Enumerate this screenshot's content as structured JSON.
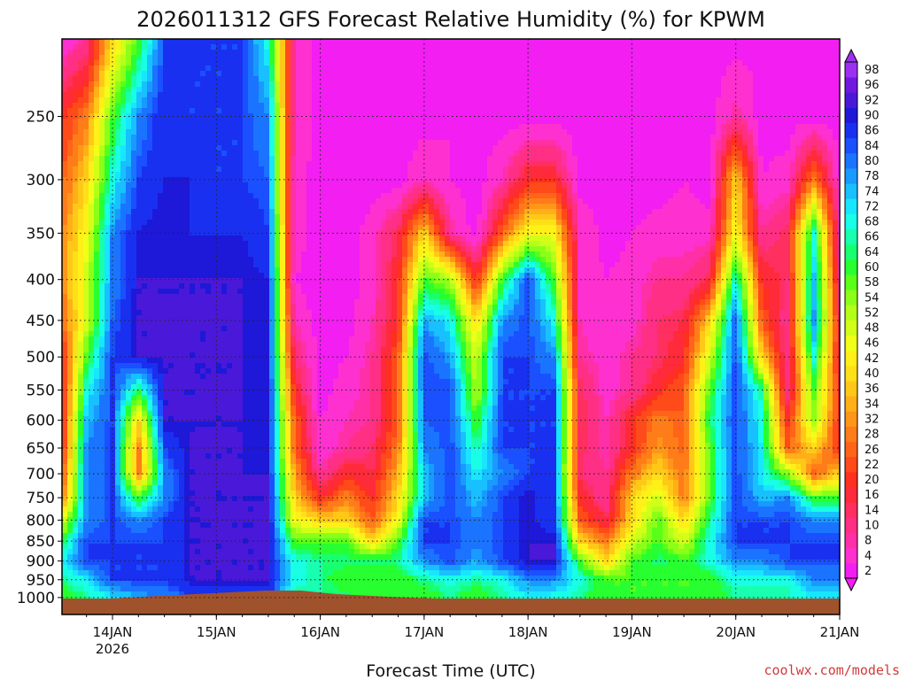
{
  "chart_data": {
    "type": "heatmap",
    "title": "2026011312 GFS Forecast Relative Humidity (%) for KPWM",
    "xlabel": "Forecast Time (UTC)",
    "ylabel": "",
    "x_ticks": [
      "14JAN",
      "15JAN",
      "16JAN",
      "17JAN",
      "18JAN",
      "19JAN",
      "20JAN",
      "21JAN"
    ],
    "x_tick_sublabel": "2026",
    "y_ticks": [
      250,
      300,
      350,
      400,
      450,
      500,
      550,
      600,
      650,
      700,
      750,
      800,
      850,
      900,
      950,
      1000
    ],
    "y_axis": "pressure (hPa), log-scaled, top 200 to bottom 1050",
    "colorbar_levels": [
      2,
      4,
      8,
      10,
      14,
      16,
      20,
      22,
      26,
      28,
      32,
      34,
      36,
      40,
      42,
      46,
      48,
      52,
      54,
      58,
      60,
      64,
      66,
      68,
      72,
      74,
      78,
      80,
      84,
      86,
      90,
      92,
      96,
      98
    ],
    "colorbar_colors": [
      "#f21ef2",
      "#ff30d0",
      "#ff2fa8",
      "#ff2f85",
      "#ff2f60",
      "#ff2a3a",
      "#ff3020",
      "#ff4a1a",
      "#ff6418",
      "#ff7d18",
      "#ff9618",
      "#ffaf18",
      "#ffc818",
      "#ffe018",
      "#fff018",
      "#f0ff18",
      "#d2ff18",
      "#b4ff18",
      "#8cff18",
      "#5aff18",
      "#28ff30",
      "#18ff70",
      "#18ffb0",
      "#18ffe6",
      "#18e6ff",
      "#18c0ff",
      "#189aff",
      "#1a74ff",
      "#1a50ff",
      "#1a30f0",
      "#1e18d8",
      "#4a18d8",
      "#7018e0",
      "#9c30f0"
    ],
    "rh_grid_levels": [
      200,
      250,
      300,
      350,
      400,
      450,
      500,
      550,
      600,
      650,
      700,
      750,
      800,
      850,
      900,
      950,
      1000
    ],
    "rh_grid_days": [
      13.5,
      13.75,
      14.0,
      14.25,
      14.5,
      14.75,
      15.0,
      15.25,
      15.5,
      15.75,
      16.0,
      16.25,
      16.5,
      16.75,
      17.0,
      17.25,
      17.5,
      17.75,
      18.0,
      18.25,
      18.5,
      18.75,
      19.0,
      19.25,
      19.5,
      19.75,
      20.0,
      20.25,
      20.5,
      20.75,
      21.0
    ],
    "rh_grid": [
      [
        4,
        10,
        40,
        60,
        86,
        86,
        86,
        86,
        70,
        8,
        2,
        2,
        2,
        2,
        2,
        2,
        2,
        2,
        2,
        2,
        2,
        2,
        2,
        2,
        2,
        2,
        2,
        4,
        2,
        2,
        2
      ],
      [
        20,
        30,
        60,
        80,
        90,
        86,
        86,
        86,
        80,
        8,
        2,
        2,
        2,
        2,
        2,
        4,
        2,
        2,
        2,
        2,
        2,
        2,
        2,
        2,
        2,
        2,
        10,
        2,
        2,
        2,
        2
      ],
      [
        26,
        40,
        70,
        86,
        90,
        90,
        86,
        86,
        84,
        6,
        2,
        2,
        2,
        2,
        8,
        4,
        2,
        8,
        20,
        20,
        2,
        2,
        2,
        2,
        4,
        2,
        40,
        4,
        6,
        30,
        4
      ],
      [
        30,
        46,
        80,
        90,
        92,
        90,
        90,
        90,
        86,
        6,
        2,
        2,
        6,
        16,
        40,
        10,
        2,
        26,
        46,
        46,
        8,
        2,
        4,
        6,
        6,
        6,
        46,
        10,
        16,
        70,
        8
      ],
      [
        30,
        50,
        80,
        92,
        92,
        92,
        92,
        92,
        90,
        4,
        2,
        2,
        6,
        20,
        60,
        54,
        20,
        60,
        86,
        60,
        8,
        4,
        6,
        10,
        10,
        16,
        70,
        20,
        14,
        76,
        10
      ],
      [
        26,
        50,
        84,
        92,
        92,
        92,
        92,
        92,
        90,
        8,
        2,
        2,
        8,
        20,
        78,
        72,
        40,
        80,
        86,
        70,
        8,
        4,
        6,
        14,
        16,
        40,
        84,
        26,
        10,
        80,
        16
      ],
      [
        16,
        60,
        86,
        92,
        92,
        92,
        92,
        92,
        90,
        14,
        2,
        4,
        10,
        26,
        86,
        78,
        50,
        86,
        86,
        80,
        10,
        6,
        10,
        14,
        20,
        50,
        86,
        40,
        10,
        70,
        16
      ],
      [
        14,
        70,
        86,
        64,
        92,
        92,
        92,
        92,
        90,
        20,
        2,
        6,
        10,
        26,
        86,
        86,
        52,
        86,
        86,
        86,
        16,
        6,
        10,
        20,
        26,
        60,
        86,
        66,
        10,
        60,
        20
      ],
      [
        14,
        76,
        86,
        40,
        92,
        92,
        92,
        92,
        90,
        26,
        4,
        8,
        10,
        26,
        84,
        86,
        60,
        86,
        86,
        86,
        16,
        8,
        20,
        30,
        26,
        64,
        86,
        70,
        20,
        56,
        20
      ],
      [
        16,
        80,
        86,
        30,
        86,
        92,
        92,
        92,
        90,
        28,
        4,
        10,
        14,
        30,
        80,
        86,
        66,
        86,
        86,
        86,
        16,
        8,
        20,
        34,
        26,
        60,
        86,
        72,
        26,
        40,
        20
      ],
      [
        20,
        80,
        86,
        30,
        80,
        92,
        92,
        92,
        92,
        34,
        10,
        20,
        16,
        36,
        76,
        86,
        72,
        80,
        86,
        86,
        14,
        10,
        30,
        40,
        30,
        60,
        86,
        72,
        56,
        26,
        40
      ],
      [
        26,
        80,
        86,
        60,
        80,
        92,
        92,
        92,
        92,
        40,
        20,
        30,
        20,
        40,
        76,
        86,
        76,
        86,
        92,
        86,
        20,
        10,
        40,
        50,
        30,
        60,
        86,
        76,
        80,
        60,
        60
      ],
      [
        46,
        80,
        86,
        80,
        86,
        92,
        92,
        92,
        92,
        46,
        40,
        40,
        26,
        46,
        86,
        86,
        80,
        86,
        92,
        86,
        26,
        16,
        40,
        60,
        40,
        66,
        86,
        86,
        86,
        80,
        80
      ],
      [
        60,
        86,
        86,
        86,
        86,
        92,
        92,
        92,
        92,
        60,
        60,
        60,
        40,
        60,
        86,
        86,
        80,
        86,
        92,
        92,
        40,
        30,
        50,
        60,
        50,
        70,
        86,
        86,
        86,
        86,
        86
      ],
      [
        70,
        86,
        86,
        86,
        86,
        92,
        92,
        92,
        92,
        70,
        66,
        66,
        66,
        66,
        80,
        86,
        78,
        86,
        92,
        92,
        60,
        40,
        60,
        66,
        60,
        70,
        80,
        80,
        86,
        86,
        86
      ],
      [
        66,
        72,
        86,
        86,
        86,
        92,
        92,
        92,
        92,
        70,
        66,
        60,
        60,
        60,
        66,
        70,
        66,
        70,
        80,
        80,
        70,
        60,
        60,
        60,
        60,
        60,
        70,
        70,
        70,
        80,
        80
      ],
      [
        60,
        66,
        72,
        78,
        80,
        86,
        86,
        86,
        86,
        66,
        66,
        66,
        60,
        60,
        60,
        66,
        60,
        66,
        72,
        70,
        66,
        60,
        60,
        60,
        60,
        60,
        66,
        66,
        66,
        72,
        72
      ]
    ]
  }
}
